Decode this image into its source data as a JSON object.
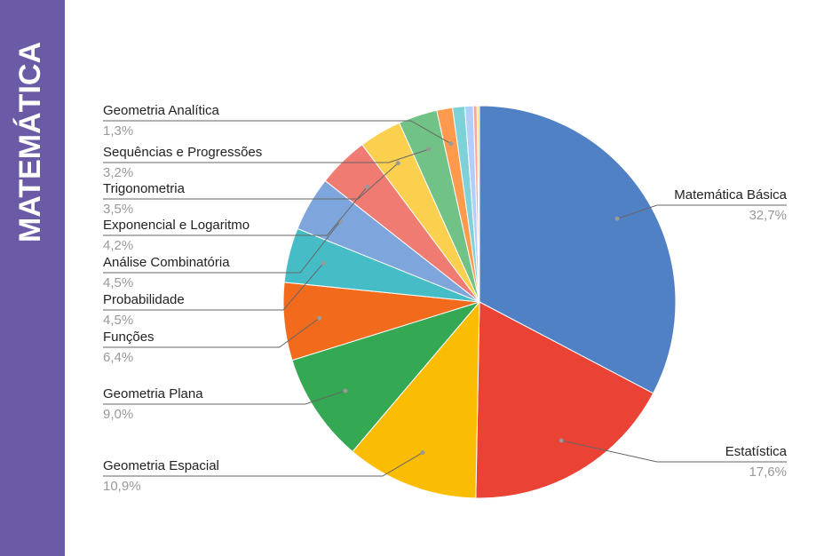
{
  "sidebar_title": "MATEMÁTICA",
  "chart_data": {
    "type": "pie",
    "categories": [
      "Matemática Básica",
      "Estatística",
      "Geometria Espacial",
      "Geometria Plana",
      "Funções",
      "Probabilidade",
      "Análise Combinatória",
      "Exponencial e Logaritmo",
      "Trigonometria",
      "Sequências e Progressões",
      "Geometria Analítica",
      null,
      null,
      null,
      null
    ],
    "values": [
      32.7,
      17.6,
      10.9,
      9.0,
      6.4,
      4.5,
      4.5,
      4.2,
      3.5,
      3.2,
      1.3,
      1.0,
      0.7,
      0.3,
      0.2
    ],
    "value_labels": [
      "32,7%",
      "17,6%",
      "10,9%",
      "9,0%",
      "6,4%",
      "4,5%",
      "4,5%",
      "4,2%",
      "3,5%",
      "3,2%",
      "1,3%",
      null,
      null,
      null,
      null
    ],
    "colors": [
      "#5081c4",
      "#ea4335",
      "#fbbc04",
      "#34a853",
      "#f26b1d",
      "#46bdc6",
      "#7ea6dc",
      "#f07b72",
      "#fcd04f",
      "#71c287",
      "#ff994d",
      "#7ed1d7",
      "#b3cefb",
      "#f7a7a0",
      "#fde08c"
    ]
  }
}
